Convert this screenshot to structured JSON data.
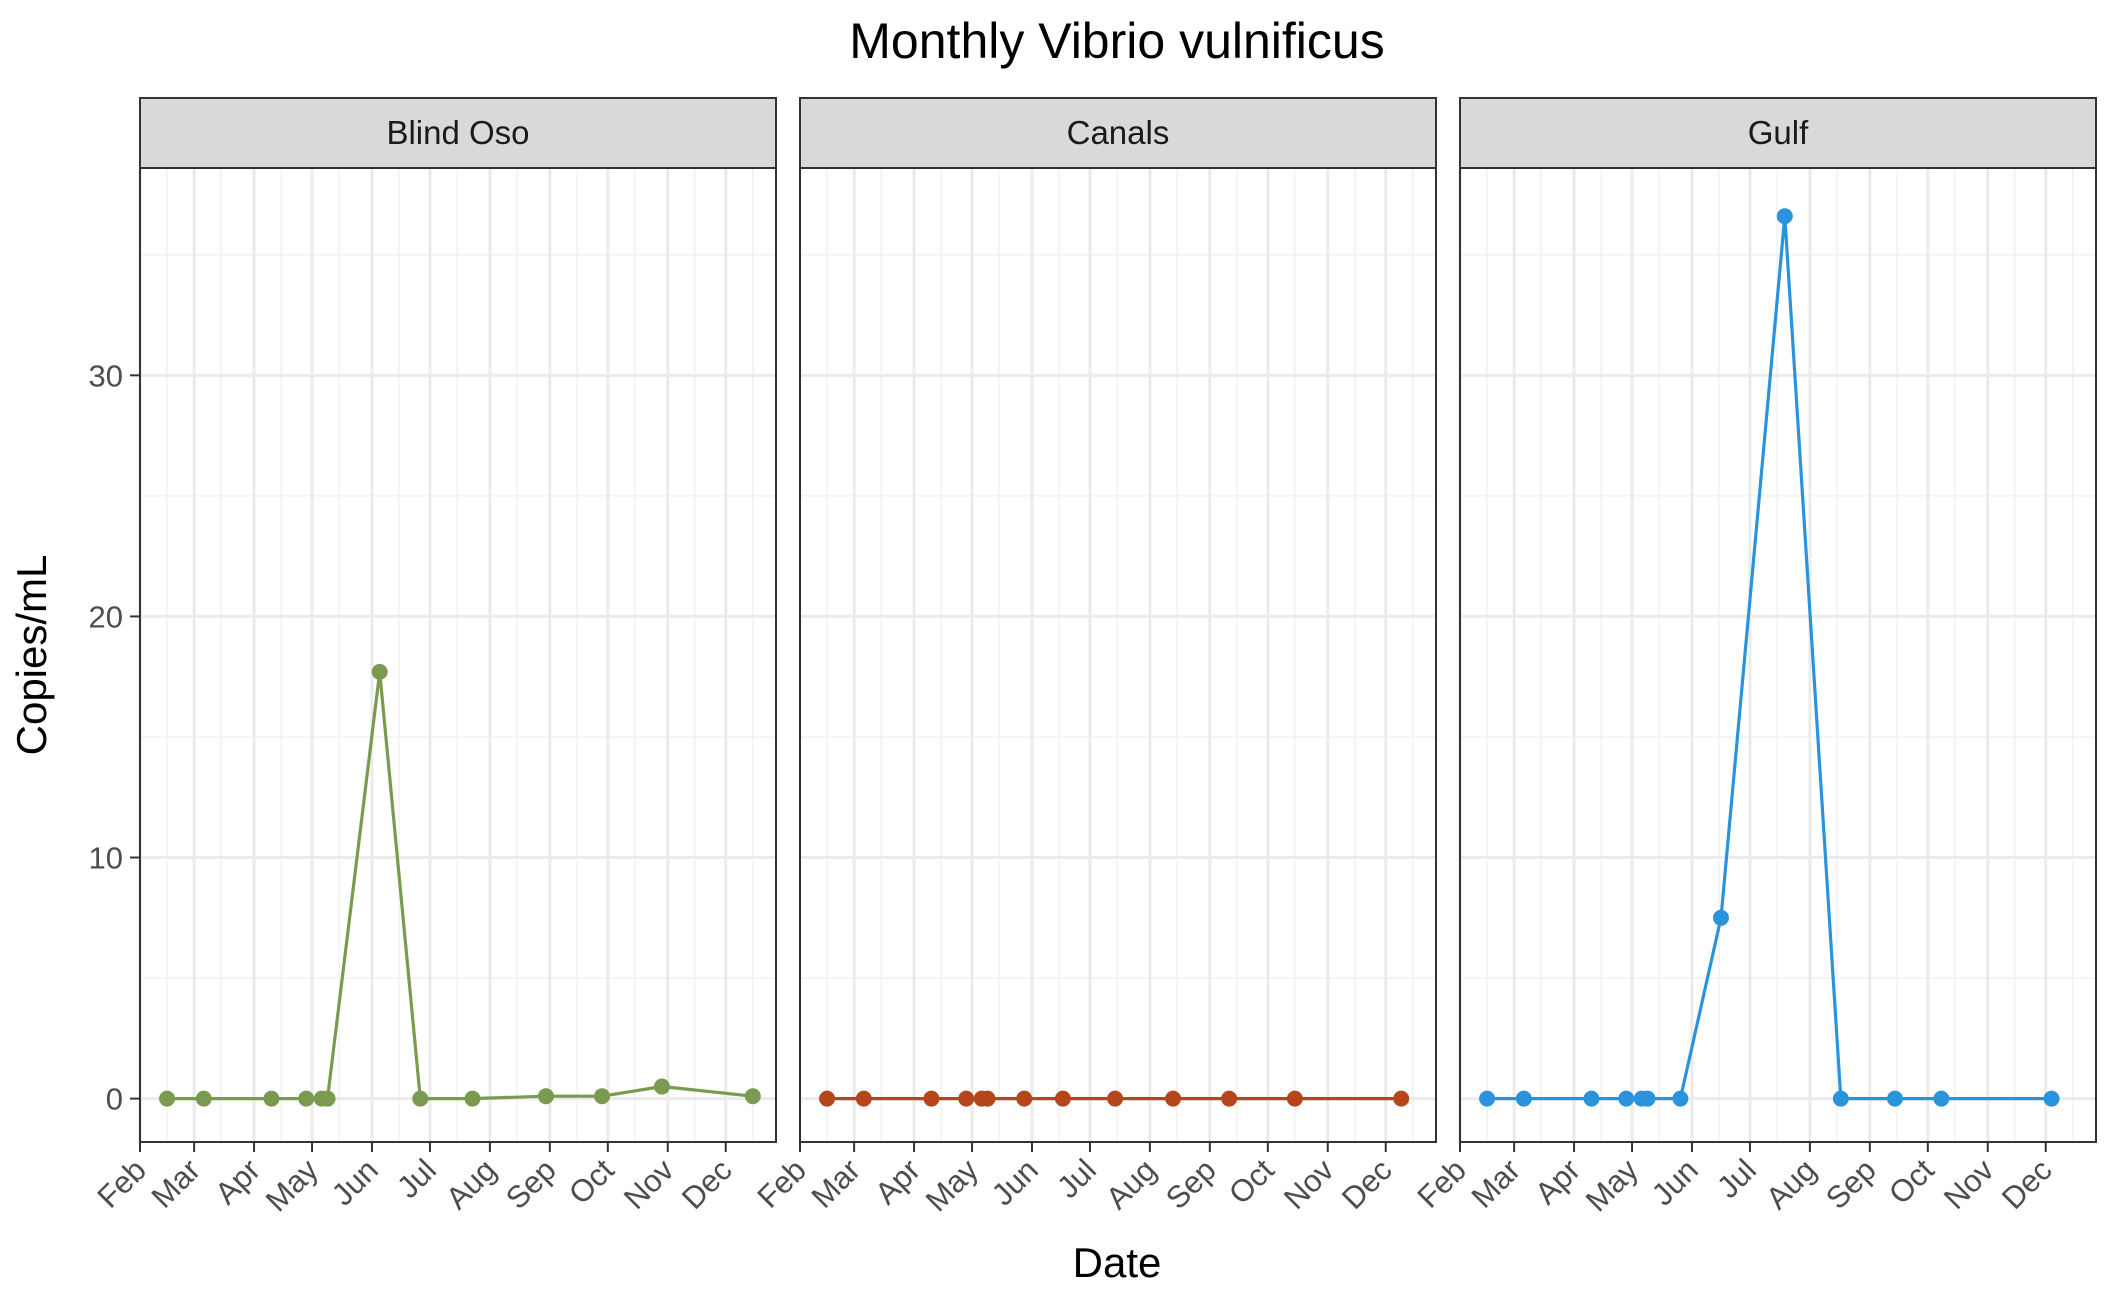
{
  "chart_data": {
    "type": "line",
    "title": "Monthly Vibrio vulnificus",
    "xlabel": "Date",
    "ylabel": "Copies/mL",
    "x_tick_labels": [
      "Feb",
      "Mar",
      "Apr",
      "May",
      "Jun",
      "Jul",
      "Aug",
      "Sep",
      "Oct",
      "Nov",
      "Dec"
    ],
    "xlim": [
      "2022-02-01",
      "2022-12-27"
    ],
    "ylim": [
      -1.8,
      38.6
    ],
    "y_ticks": [
      0,
      10,
      20,
      30
    ],
    "grid": true,
    "legend": "none",
    "facets": [
      {
        "strip_label": "Blind Oso",
        "color": "#7a9a4f",
        "points": [
          {
            "x": "2022-02-15",
            "y": 0
          },
          {
            "x": "2022-03-06",
            "y": 0
          },
          {
            "x": "2022-04-10",
            "y": 0
          },
          {
            "x": "2022-04-28",
            "y": 0
          },
          {
            "x": "2022-05-06",
            "y": 0
          },
          {
            "x": "2022-05-09",
            "y": 0
          },
          {
            "x": "2022-06-05",
            "y": 17.7
          },
          {
            "x": "2022-06-26",
            "y": 0
          },
          {
            "x": "2022-07-23",
            "y": 0
          },
          {
            "x": "2022-08-30",
            "y": 0.1
          },
          {
            "x": "2022-09-28",
            "y": 0.1
          },
          {
            "x": "2022-10-29",
            "y": 0.5
          },
          {
            "x": "2022-12-15",
            "y": 0.1
          }
        ]
      },
      {
        "strip_label": "Canals",
        "color": "#b5451b",
        "points": [
          {
            "x": "2022-02-15",
            "y": 0
          },
          {
            "x": "2022-03-06",
            "y": 0
          },
          {
            "x": "2022-04-10",
            "y": 0
          },
          {
            "x": "2022-04-28",
            "y": 0
          },
          {
            "x": "2022-05-06",
            "y": 0
          },
          {
            "x": "2022-05-09",
            "y": 0
          },
          {
            "x": "2022-05-28",
            "y": 0
          },
          {
            "x": "2022-06-17",
            "y": 0
          },
          {
            "x": "2022-07-14",
            "y": 0
          },
          {
            "x": "2022-08-13",
            "y": 0
          },
          {
            "x": "2022-09-11",
            "y": 0
          },
          {
            "x": "2022-10-15",
            "y": 0
          },
          {
            "x": "2022-12-09",
            "y": 0
          }
        ]
      },
      {
        "strip_label": "Gulf",
        "color": "#2b93dc",
        "points": [
          {
            "x": "2022-02-15",
            "y": 0
          },
          {
            "x": "2022-03-06",
            "y": 0
          },
          {
            "x": "2022-04-10",
            "y": 0
          },
          {
            "x": "2022-04-28",
            "y": 0
          },
          {
            "x": "2022-05-06",
            "y": 0
          },
          {
            "x": "2022-05-09",
            "y": 0
          },
          {
            "x": "2022-05-26",
            "y": 0
          },
          {
            "x": "2022-06-16",
            "y": 7.5
          },
          {
            "x": "2022-07-19",
            "y": 36.6
          },
          {
            "x": "2022-08-17",
            "y": 0
          },
          {
            "x": "2022-09-14",
            "y": 0
          },
          {
            "x": "2022-10-08",
            "y": 0
          },
          {
            "x": "2022-12-04",
            "y": 0
          }
        ]
      }
    ]
  }
}
